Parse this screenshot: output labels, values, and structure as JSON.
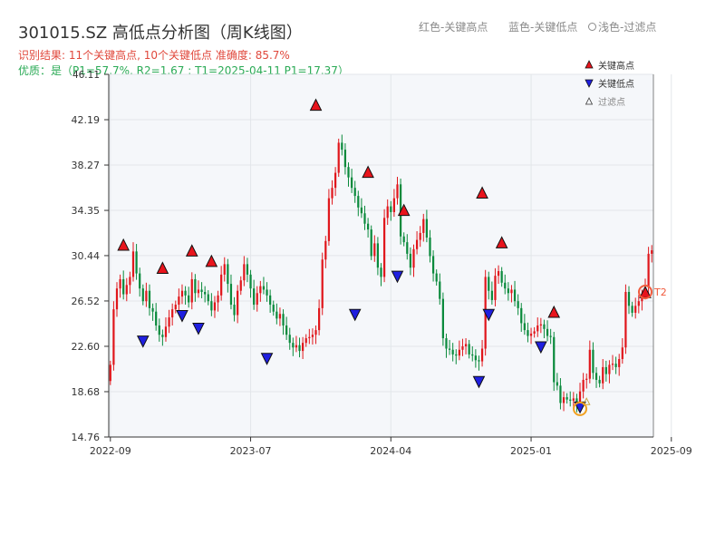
{
  "title": "301015.SZ 高低点分析图（周K线图）",
  "legend_top": {
    "red": "红色-关键高点",
    "blue": "蓝色-关键低点",
    "gray": "浅色-过滤点"
  },
  "subtitle_result": "识别结果: 11个关键高点, 10个关键低点  准确度: 85.7%",
  "subtitle_quality": "优质：是（P1=57.7%, R2=1.67 ; T1=2025-04-11 P1=17.37）",
  "colors": {
    "up": "#e0171c",
    "down": "#0a8a3c",
    "high_marker": "#e8141c",
    "low_marker": "#1f1fe0",
    "accent_orange": "#f0a020",
    "plot_bg": "#f5f7fa"
  },
  "chart_data": {
    "type": "candlestick",
    "ylim": [
      14.76,
      46.11
    ],
    "y_ticks": [
      14.76,
      18.68,
      22.6,
      26.52,
      30.44,
      34.35,
      38.27,
      42.19,
      46.11
    ],
    "x_ticks": [
      {
        "label": "2022-09",
        "week": 0
      },
      {
        "label": "2023-07",
        "week": 43
      },
      {
        "label": "2024-04",
        "week": 86
      },
      {
        "label": "2025-01",
        "week": 129
      },
      {
        "label": "2025-09",
        "week": 172
      }
    ],
    "legend": [
      {
        "key": "high",
        "label": "关键高点"
      },
      {
        "key": "low",
        "label": "关键低点"
      },
      {
        "key": "filtered",
        "label": "过滤点"
      }
    ],
    "closes": [
      21.0,
      25.8,
      27.6,
      28.4,
      27.1,
      27.9,
      28.6,
      30.8,
      28.9,
      27.6,
      26.5,
      27.4,
      25.9,
      25.6,
      24.4,
      23.6,
      23.4,
      24.3,
      25.1,
      25.8,
      26.2,
      26.9,
      27.4,
      27.0,
      26.4,
      28.4,
      27.2,
      27.5,
      27.3,
      27.1,
      26.5,
      25.7,
      26.4,
      27.0,
      28.8,
      29.7,
      28.0,
      26.2,
      25.3,
      27.4,
      28.3,
      29.7,
      28.8,
      27.6,
      26.2,
      27.2,
      27.8,
      27.5,
      27.0,
      26.2,
      25.6,
      25.0,
      25.4,
      24.4,
      23.6,
      22.9,
      22.5,
      22.7,
      22.2,
      22.9,
      23.3,
      23.4,
      23.6,
      24.0,
      25.9,
      30.1,
      31.7,
      35.4,
      36.3,
      37.6,
      40.2,
      39.6,
      38.1,
      37.2,
      36.3,
      35.6,
      34.6,
      34.1,
      33.2,
      32.7,
      30.4,
      31.5,
      29.4,
      28.6,
      33.7,
      34.7,
      34.2,
      35.4,
      36.6,
      32.1,
      31.6,
      30.6,
      29.4,
      31.0,
      31.8,
      32.4,
      33.6,
      32.0,
      30.4,
      28.9,
      28.2,
      26.7,
      23.3,
      22.4,
      22.3,
      21.9,
      21.8,
      22.3,
      22.6,
      22.8,
      21.9,
      21.8,
      21.4,
      21.3,
      22.4,
      28.6,
      27.4,
      26.6,
      28.7,
      29.1,
      28.1,
      27.6,
      27.2,
      27.5,
      26.5,
      25.9,
      24.6,
      24.0,
      23.5,
      23.7,
      23.9,
      24.4,
      24.5,
      24.1,
      23.5,
      23.4,
      19.5,
      19.2,
      17.7,
      18.2,
      18.0,
      17.9,
      18.1,
      17.7,
      18.7,
      19.7,
      19.8,
      22.3,
      20.3,
      19.7,
      19.4,
      20.8,
      20.2,
      21.0,
      21.1,
      20.8,
      21.5,
      22.5,
      27.3,
      26.1,
      25.5,
      26.1,
      26.5,
      27.1,
      27.7,
      30.6,
      30.9
    ],
    "key_highs": [
      {
        "week": 4,
        "price": 31.3
      },
      {
        "week": 16,
        "price": 29.3
      },
      {
        "week": 25,
        "price": 30.8
      },
      {
        "week": 31,
        "price": 29.9
      },
      {
        "week": 63,
        "price": 43.4
      },
      {
        "week": 79,
        "price": 37.6
      },
      {
        "week": 90,
        "price": 34.3
      },
      {
        "week": 114,
        "price": 35.8
      },
      {
        "week": 120,
        "price": 31.5
      },
      {
        "week": 136,
        "price": 25.5
      },
      {
        "week": 164,
        "price": 27.2
      }
    ],
    "key_lows": [
      {
        "week": 10,
        "price": 23.1
      },
      {
        "week": 22,
        "price": 25.3
      },
      {
        "week": 27,
        "price": 24.2
      },
      {
        "week": 48,
        "price": 21.6
      },
      {
        "week": 75,
        "price": 25.4
      },
      {
        "week": 88,
        "price": 28.7
      },
      {
        "week": 113,
        "price": 19.6
      },
      {
        "week": 116,
        "price": 25.4
      },
      {
        "week": 132,
        "price": 22.6
      },
      {
        "week": 144,
        "price": 17.4
      }
    ],
    "filtered_points": [
      {
        "week": 146,
        "price": 17.8
      }
    ],
    "circled": [
      {
        "week": 144,
        "price": 17.2,
        "color": "#f0a020",
        "label": ""
      },
      {
        "week": 164,
        "price": 27.3,
        "color": "#f05a3c",
        "label": "T2"
      }
    ]
  }
}
